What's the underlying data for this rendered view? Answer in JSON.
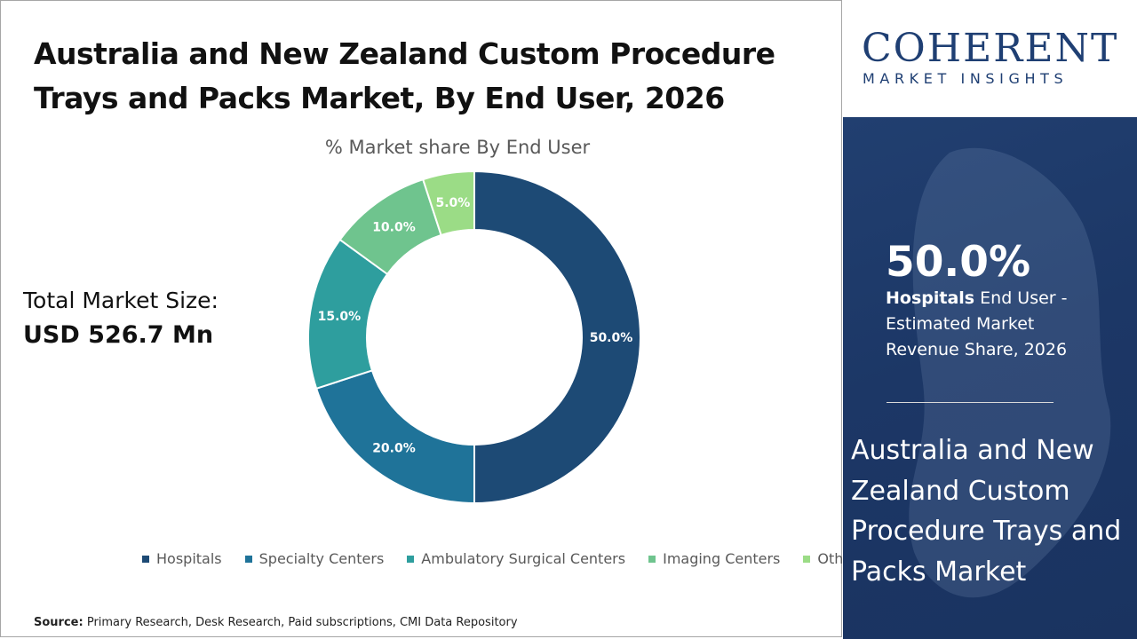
{
  "title": "Australia and New Zealand Custom Procedure Trays and Packs Market, By End User, 2026",
  "total": {
    "label": "Total Market Size:",
    "value": "USD 526.7 Mn"
  },
  "source": {
    "label": "Source:",
    "text": "Primary Research, Desk Research, Paid subscriptions, CMI Data Repository"
  },
  "logo": {
    "main": "COHERENT",
    "sub": "MARKET INSIGHTS"
  },
  "highlight": {
    "value": "50.0%",
    "segment": "Hospitals",
    "description": "End User - Estimated Market Revenue Share, 2026"
  },
  "market_name": "Australia and New Zealand Custom Procedure Trays and Packs Market",
  "colors": {
    "panel": "#1c3766",
    "logo": "#1f3f73"
  },
  "chart_data": {
    "type": "pie",
    "title": "% Market share By End User",
    "categories": [
      "Hospitals",
      "Specialty Centers",
      "Ambulatory Surgical Centers",
      "Imaging Centers",
      "Others"
    ],
    "values": [
      50.0,
      20.0,
      15.0,
      10.0,
      5.0
    ],
    "data_labels": [
      "50.0%",
      "20.0%",
      "15.0%",
      "10.0%",
      "5.0%"
    ],
    "colors": [
      "#1d4a75",
      "#1f7399",
      "#2e9e9e",
      "#6fc48e",
      "#9bdc86"
    ],
    "legend": "bottom"
  }
}
